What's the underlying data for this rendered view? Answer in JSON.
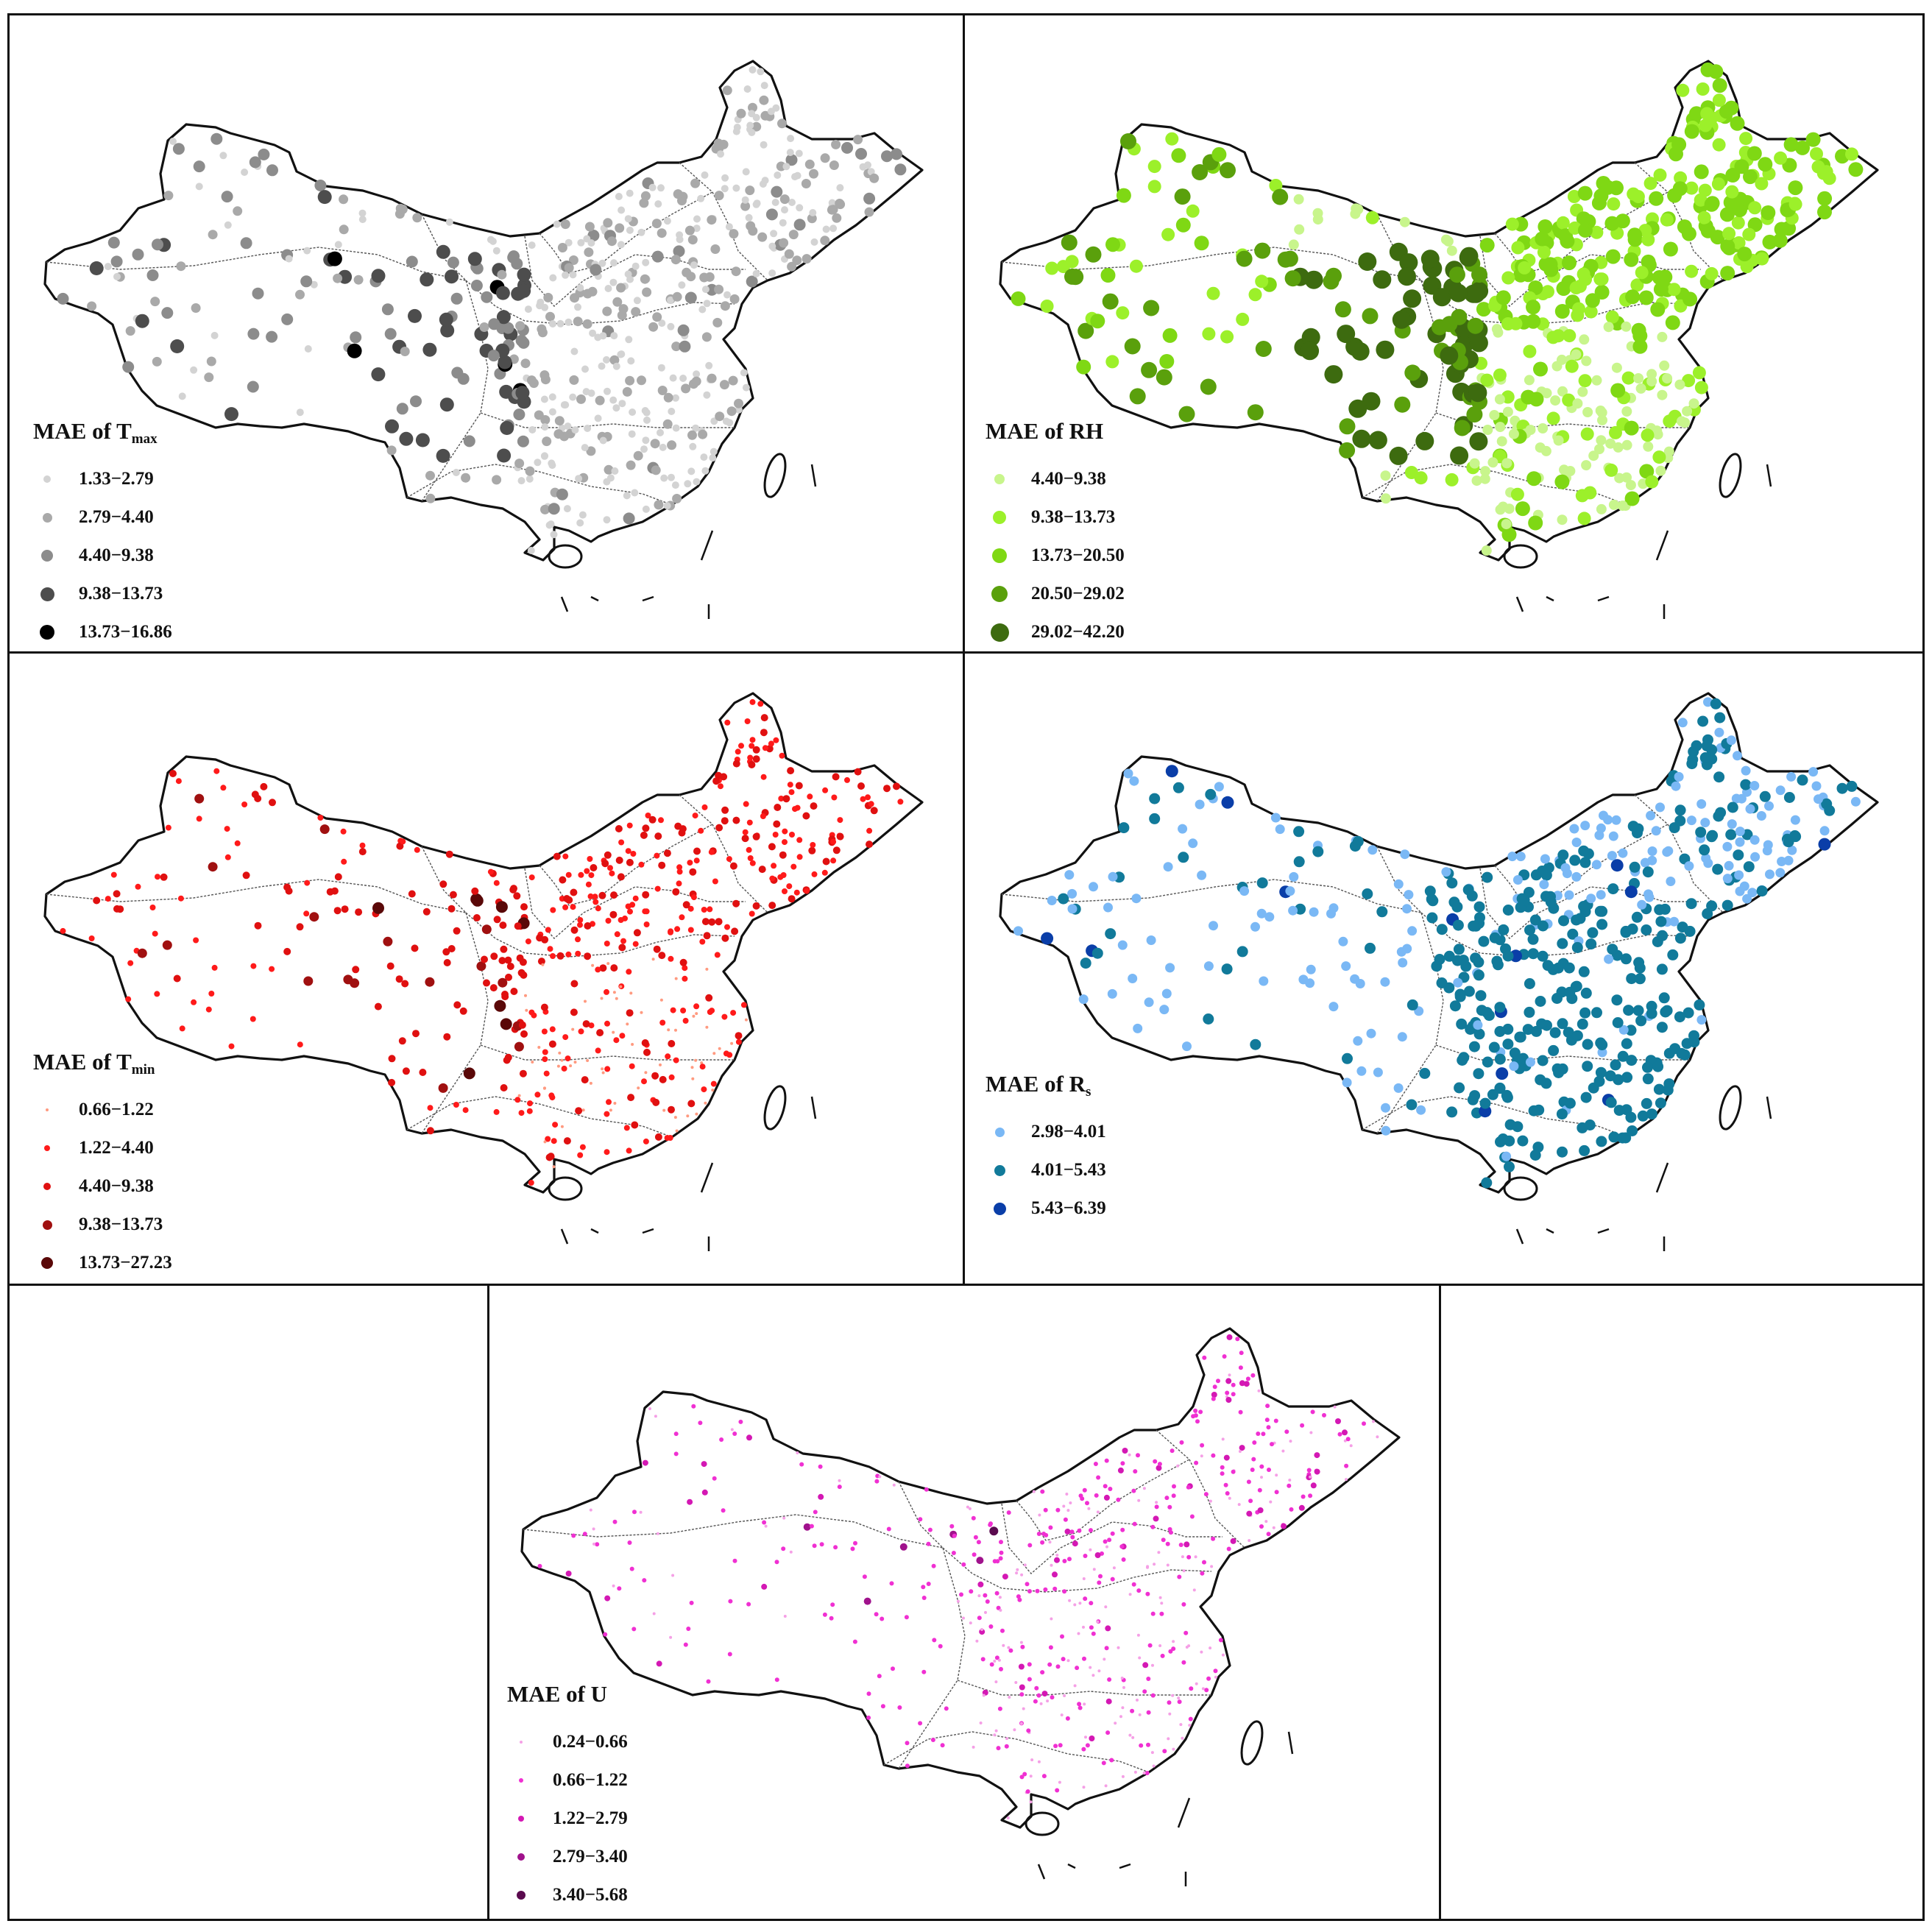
{
  "panels": [
    {
      "id": "tmax",
      "title_main": "MAE of T",
      "title_sub": "max",
      "legend": [
        {
          "label": "1.33−2.79",
          "color": "#d3d3d3"
        },
        {
          "label": "2.79−4.40",
          "color": "#a9a9a9"
        },
        {
          "label": "4.40−9.38",
          "color": "#8c8c8c"
        },
        {
          "label": "9.38−13.73",
          "color": "#4d4d4d"
        },
        {
          "label": "13.73−16.86",
          "color": "#000000"
        }
      ]
    },
    {
      "id": "rh",
      "title_main": "MAE of RH",
      "title_sub": "",
      "legend": [
        {
          "label": "4.40−9.38",
          "color": "#c8f58c"
        },
        {
          "label": "9.38−13.73",
          "color": "#9cf02a"
        },
        {
          "label": "13.73−20.50",
          "color": "#7fd814"
        },
        {
          "label": "20.50−29.02",
          "color": "#5aa00c"
        },
        {
          "label": "29.02−42.20",
          "color": "#3d6b0f"
        }
      ]
    },
    {
      "id": "tmin",
      "title_main": "MAE of T",
      "title_sub": "min",
      "legend": [
        {
          "label": "0.66−1.22",
          "color": "#ff9a80"
        },
        {
          "label": "1.22−4.40",
          "color": "#ff1a1a"
        },
        {
          "label": "4.40−9.38",
          "color": "#e01010"
        },
        {
          "label": "9.38−13.73",
          "color": "#a01010"
        },
        {
          "label": "13.73−27.23",
          "color": "#5a0808"
        }
      ]
    },
    {
      "id": "rs",
      "title_main": "MAE of R",
      "title_sub": "s",
      "legend": [
        {
          "label": "2.98−4.01",
          "color": "#7ab8f5"
        },
        {
          "label": "4.01−5.43",
          "color": "#117a9a"
        },
        {
          "label": "5.43−6.39",
          "color": "#0a3ea8"
        }
      ]
    },
    {
      "id": "u",
      "title_main": "MAE of U",
      "title_sub": "",
      "legend": [
        {
          "label": "0.24−0.66",
          "color": "#f5a0e6"
        },
        {
          "label": "0.66−1.22",
          "color": "#f030d2"
        },
        {
          "label": "1.22−2.79",
          "color": "#d418b4"
        },
        {
          "label": "2.79−3.40",
          "color": "#a0128c"
        },
        {
          "label": "3.40−5.68",
          "color": "#5a0a4e"
        }
      ]
    }
  ]
}
